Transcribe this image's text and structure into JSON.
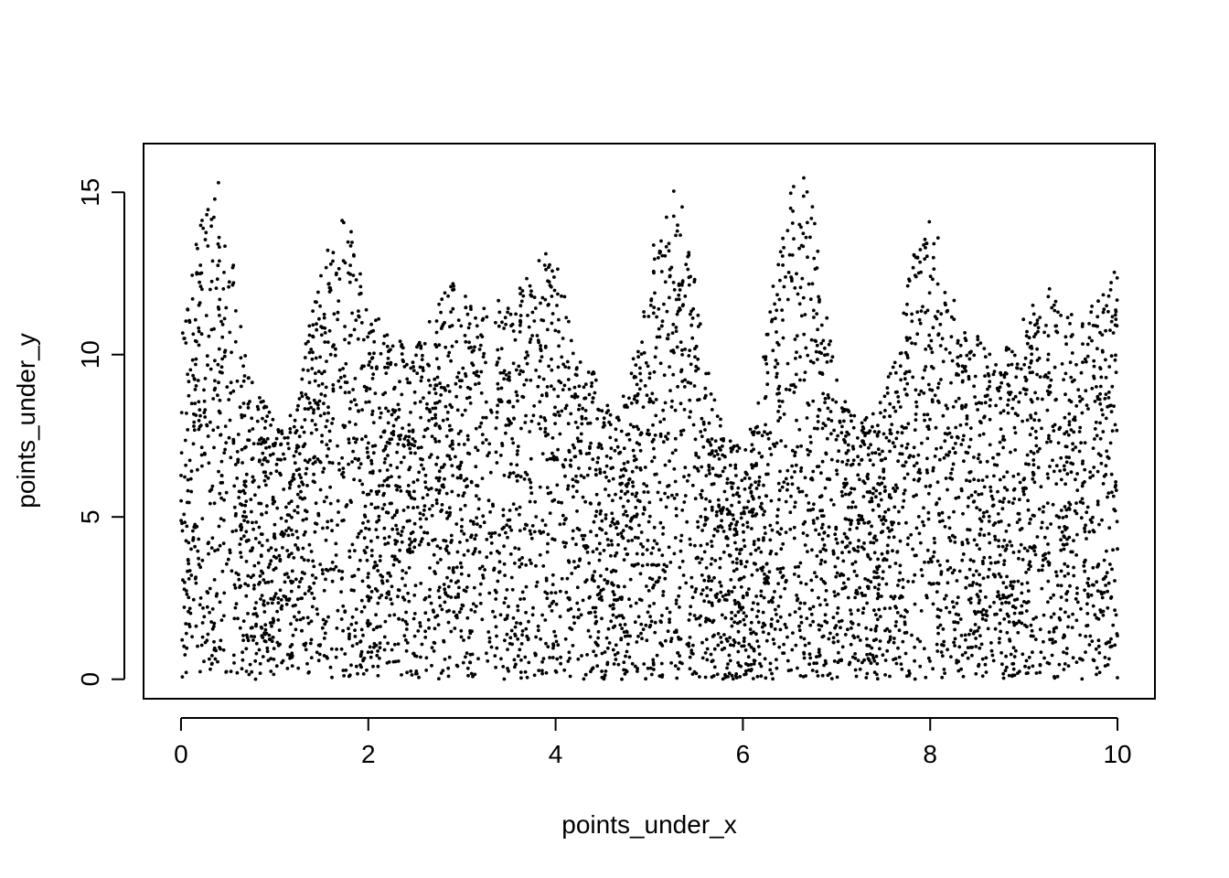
{
  "chart_data": {
    "type": "scatter",
    "title": "",
    "xlabel": "points_under_x",
    "ylabel": "points_under_y",
    "xlim": [
      -0.4,
      10.4
    ],
    "ylim": [
      -0.6,
      16.5
    ],
    "x_ticks": [
      0,
      2,
      4,
      6,
      8,
      10
    ],
    "y_ticks": [
      0,
      5,
      10,
      15
    ],
    "x_tick_labels": [
      "0",
      "2",
      "4",
      "6",
      "8",
      "10"
    ],
    "y_tick_labels": [
      "0",
      "5",
      "10",
      "15"
    ],
    "grid": false,
    "legend": "none",
    "point_color": "#000000",
    "point_count": 6000,
    "point_distribution": "uniform y under envelope",
    "envelope": {
      "x": [
        0.0,
        0.1,
        0.2,
        0.3,
        0.35,
        0.4,
        0.5,
        0.6,
        0.7,
        0.8,
        0.9,
        1.0,
        1.1,
        1.2,
        1.3,
        1.4,
        1.5,
        1.6,
        1.7,
        1.8,
        1.9,
        2.0,
        2.1,
        2.2,
        2.3,
        2.4,
        2.5,
        2.6,
        2.7,
        2.8,
        2.9,
        3.0,
        3.1,
        3.2,
        3.3,
        3.4,
        3.5,
        3.6,
        3.7,
        3.8,
        3.9,
        4.0,
        4.1,
        4.2,
        4.3,
        4.4,
        4.5,
        4.6,
        4.7,
        4.8,
        4.9,
        5.0,
        5.1,
        5.2,
        5.3,
        5.4,
        5.5,
        5.6,
        5.7,
        5.8,
        5.9,
        6.0,
        6.1,
        6.2,
        6.3,
        6.4,
        6.5,
        6.6,
        6.7,
        6.8,
        6.9,
        7.0,
        7.1,
        7.2,
        7.3,
        7.4,
        7.5,
        7.6,
        7.7,
        7.8,
        7.9,
        8.0,
        8.1,
        8.2,
        8.3,
        8.4,
        8.5,
        8.6,
        8.7,
        8.8,
        8.9,
        9.0,
        9.1,
        9.2,
        9.3,
        9.4,
        9.5,
        9.6,
        9.7,
        9.8,
        9.9,
        10.0
      ],
      "y": [
        10.8,
        12.6,
        14.0,
        15.2,
        15.6,
        15.4,
        14.2,
        12.0,
        10.2,
        8.9,
        8.5,
        8.2,
        7.8,
        8.3,
        9.9,
        11.5,
        12.6,
        13.6,
        14.4,
        14.0,
        12.8,
        11.6,
        11.2,
        10.9,
        10.5,
        10.3,
        10.4,
        10.8,
        11.3,
        11.9,
        12.2,
        12.0,
        11.6,
        11.4,
        11.5,
        11.7,
        11.6,
        12.1,
        12.4,
        13.0,
        13.3,
        13.0,
        12.0,
        10.5,
        10.0,
        9.6,
        8.7,
        8.3,
        8.6,
        9.6,
        10.9,
        12.6,
        14.3,
        15.1,
        15.3,
        14.2,
        12.1,
        9.9,
        8.6,
        8.0,
        7.5,
        7.0,
        7.9,
        9.6,
        11.8,
        13.6,
        15.0,
        15.9,
        15.4,
        13.5,
        11.2,
        9.3,
        8.5,
        8.1,
        8.2,
        8.5,
        8.9,
        9.7,
        11.4,
        12.9,
        13.8,
        14.5,
        13.6,
        12.2,
        11.4,
        11.0,
        10.6,
        10.3,
        10.0,
        10.2,
        10.6,
        11.2,
        11.8,
        12.1,
        12.0,
        11.5,
        11.3,
        11.2,
        11.4,
        11.8,
        12.2,
        12.8
      ]
    }
  }
}
